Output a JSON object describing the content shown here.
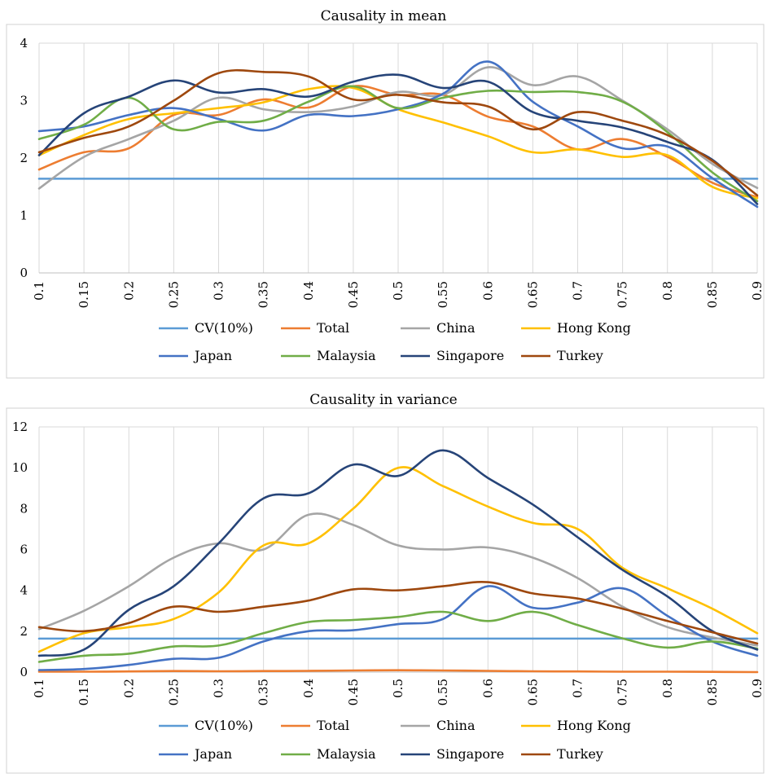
{
  "chart_data": [
    {
      "type": "line",
      "title": "Causality in mean",
      "x": [
        0.1,
        0.15,
        0.2,
        0.25,
        0.3,
        0.35,
        0.4,
        0.45,
        0.5,
        0.55,
        0.6,
        0.65,
        0.7,
        0.75,
        0.8,
        0.85,
        0.9
      ],
      "x_tick_labels": [
        "0.1",
        "0.15",
        "0.2",
        "0.25",
        "0.3",
        "0.35",
        "0.4",
        "0.45",
        "0.5",
        "0.55",
        "0.6",
        "0.65",
        "0.7",
        "0.75",
        "0.8",
        "0.85",
        "0.9"
      ],
      "y_ticks": [
        0,
        1,
        2,
        3,
        4
      ],
      "ylim": [
        0,
        4
      ],
      "grid": "vertical",
      "legend_position": "bottom",
      "series": [
        {
          "name": "CV(10%)",
          "color": "#5b9bd5",
          "values": [
            1.64,
            1.64,
            1.64,
            1.64,
            1.64,
            1.64,
            1.64,
            1.64,
            1.64,
            1.64,
            1.64,
            1.64,
            1.64,
            1.64,
            1.64,
            1.64,
            1.64
          ]
        },
        {
          "name": "Total",
          "color": "#ed7d31",
          "values": [
            1.8,
            2.1,
            2.17,
            2.75,
            2.75,
            3.02,
            2.88,
            3.25,
            3.1,
            3.1,
            2.72,
            2.55,
            2.15,
            2.33,
            2.02,
            1.57,
            1.32
          ]
        },
        {
          "name": "China",
          "color": "#a5a5a5",
          "values": [
            1.47,
            2.02,
            2.33,
            2.65,
            3.05,
            2.85,
            2.8,
            2.9,
            3.15,
            3.1,
            3.58,
            3.27,
            3.42,
            3.0,
            2.5,
            1.9,
            1.48
          ]
        },
        {
          "name": "Hong Kong",
          "color": "#ffc000",
          "values": [
            2.05,
            2.4,
            2.68,
            2.78,
            2.87,
            2.97,
            3.2,
            3.22,
            2.85,
            2.62,
            2.38,
            2.1,
            2.15,
            2.02,
            2.05,
            1.5,
            1.3
          ]
        },
        {
          "name": "Japan",
          "color": "#4472c4",
          "values": [
            2.47,
            2.55,
            2.75,
            2.87,
            2.68,
            2.48,
            2.75,
            2.73,
            2.85,
            3.12,
            3.68,
            2.98,
            2.55,
            2.17,
            2.2,
            1.65,
            1.15
          ]
        },
        {
          "name": "Malaysia",
          "color": "#70ad47",
          "values": [
            2.33,
            2.58,
            3.05,
            2.5,
            2.63,
            2.65,
            2.98,
            3.25,
            2.87,
            3.05,
            3.17,
            3.15,
            3.15,
            2.98,
            2.45,
            1.75,
            1.25
          ]
        },
        {
          "name": "Singapore",
          "color": "#264478",
          "values": [
            2.05,
            2.78,
            3.07,
            3.35,
            3.14,
            3.2,
            3.07,
            3.33,
            3.45,
            3.22,
            3.33,
            2.8,
            2.65,
            2.53,
            2.28,
            1.97,
            1.2
          ]
        },
        {
          "name": "Turkey",
          "color": "#9e480e",
          "values": [
            2.1,
            2.35,
            2.55,
            3.0,
            3.48,
            3.5,
            3.42,
            3.02,
            3.1,
            2.97,
            2.9,
            2.5,
            2.8,
            2.65,
            2.4,
            1.95,
            1.35
          ]
        }
      ]
    },
    {
      "type": "line",
      "title": "Causality in variance",
      "x": [
        0.1,
        0.15,
        0.2,
        0.25,
        0.3,
        0.35,
        0.4,
        0.45,
        0.5,
        0.55,
        0.6,
        0.65,
        0.7,
        0.75,
        0.8,
        0.85,
        0.9
      ],
      "x_tick_labels": [
        "0.1",
        "0.15",
        "0.2",
        "0.25",
        "0.3",
        "0.35",
        "0.4",
        "0.45",
        "0.5",
        "0.55",
        "0.6",
        "0.65",
        "0.7",
        "0.75",
        "0.8",
        "0.85",
        "0.9"
      ],
      "y_ticks": [
        0,
        2,
        4,
        6,
        8,
        10,
        12
      ],
      "ylim": [
        0,
        12
      ],
      "grid": "vertical",
      "legend_position": "bottom",
      "series": [
        {
          "name": "CV(10%)",
          "color": "#5b9bd5",
          "values": [
            1.64,
            1.64,
            1.64,
            1.64,
            1.64,
            1.64,
            1.64,
            1.64,
            1.64,
            1.64,
            1.64,
            1.64,
            1.64,
            1.64,
            1.64,
            1.64,
            1.64
          ]
        },
        {
          "name": "Total",
          "color": "#ed7d31",
          "values": [
            0.02,
            0.02,
            0.03,
            0.05,
            0.04,
            0.05,
            0.06,
            0.08,
            0.09,
            0.08,
            0.06,
            0.04,
            0.03,
            0.02,
            0.02,
            0.01,
            0.0
          ]
        },
        {
          "name": "China",
          "color": "#a5a5a5",
          "values": [
            2.1,
            3.0,
            4.2,
            5.6,
            6.3,
            6.0,
            7.7,
            7.2,
            6.2,
            6.0,
            6.1,
            5.6,
            4.6,
            3.2,
            2.2,
            1.7,
            1.3
          ]
        },
        {
          "name": "Hong Kong",
          "color": "#ffc000",
          "values": [
            1.0,
            1.9,
            2.2,
            2.6,
            3.9,
            6.2,
            6.3,
            8.0,
            10.0,
            9.1,
            8.1,
            7.3,
            7.0,
            5.1,
            4.1,
            3.1,
            1.9
          ]
        },
        {
          "name": "Japan",
          "color": "#4472c4",
          "values": [
            0.1,
            0.15,
            0.35,
            0.65,
            0.7,
            1.5,
            2.0,
            2.05,
            2.35,
            2.6,
            4.2,
            3.15,
            3.4,
            4.1,
            2.75,
            1.5,
            0.8
          ]
        },
        {
          "name": "Malaysia",
          "color": "#70ad47",
          "values": [
            0.5,
            0.8,
            0.9,
            1.25,
            1.3,
            1.9,
            2.45,
            2.55,
            2.7,
            2.95,
            2.5,
            2.95,
            2.3,
            1.65,
            1.2,
            1.5,
            1.15
          ]
        },
        {
          "name": "Singapore",
          "color": "#264478",
          "values": [
            0.8,
            1.1,
            3.05,
            4.2,
            6.3,
            8.5,
            8.75,
            10.15,
            9.6,
            10.85,
            9.5,
            8.2,
            6.6,
            5.0,
            3.7,
            2.0,
            1.1
          ]
        },
        {
          "name": "Turkey",
          "color": "#9e480e",
          "values": [
            2.2,
            2.0,
            2.4,
            3.2,
            2.95,
            3.2,
            3.5,
            4.05,
            4.0,
            4.2,
            4.4,
            3.85,
            3.6,
            3.1,
            2.5,
            1.95,
            1.4
          ]
        }
      ]
    }
  ]
}
